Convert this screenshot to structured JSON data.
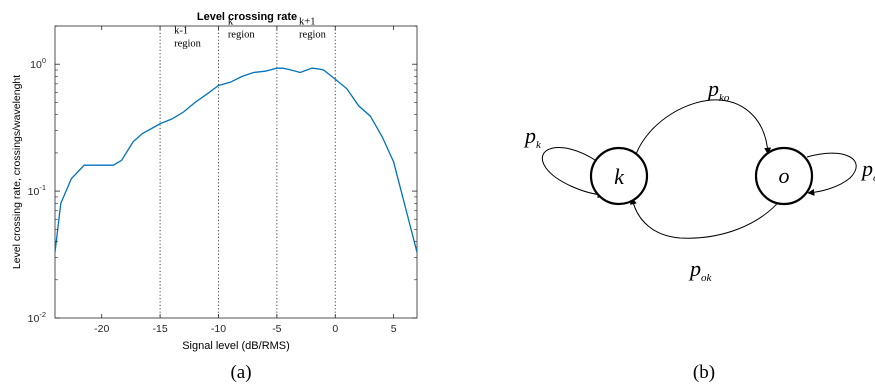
{
  "chart_data": {
    "type": "line",
    "title": "Level crossing rate",
    "xlabel": "Signal level (dB/RMS)",
    "ylabel": "Level crossing rate, crossings/wavelenght",
    "xlim": [
      -24,
      7
    ],
    "ylim": [
      0.01,
      2
    ],
    "yscale": "log",
    "grid": false,
    "x_ticks": [
      -20,
      -15,
      -10,
      -5,
      0,
      5
    ],
    "x_tick_labels": [
      "-20",
      "-15",
      "-10",
      "-5",
      "0",
      "5"
    ],
    "y_ticks": [
      0.01,
      0.1,
      1
    ],
    "y_tick_labels": [
      "10",
      "10",
      "10"
    ],
    "y_tick_exponents": [
      "-2",
      "-1",
      "0"
    ],
    "series": [
      {
        "color": "#0072BD",
        "x": [
          -24,
          -23.5,
          -22.6,
          -21.5,
          -20,
          -19,
          -18.3,
          -17.3,
          -16.5,
          -15.5,
          -15,
          -14,
          -13,
          -12,
          -11,
          -10,
          -9,
          -8,
          -7,
          -6,
          -5,
          -4.5,
          -4,
          -3,
          -2,
          -1.5,
          -1,
          0,
          1,
          2,
          3,
          4,
          5,
          6,
          7
        ],
        "y": [
          0.033,
          0.08,
          0.125,
          0.16,
          0.16,
          0.16,
          0.175,
          0.245,
          0.285,
          0.32,
          0.34,
          0.37,
          0.42,
          0.5,
          0.58,
          0.68,
          0.72,
          0.8,
          0.86,
          0.88,
          0.93,
          0.93,
          0.91,
          0.86,
          0.93,
          0.92,
          0.9,
          0.76,
          0.64,
          0.47,
          0.39,
          0.27,
          0.17,
          0.075,
          0.033
        ]
      }
    ],
    "reference_lines_x": [
      -15,
      -10,
      -5,
      0
    ],
    "annotations": [
      {
        "lines": [
          "k-1",
          "region"
        ],
        "x": -13.8,
        "y": 1.75
      },
      {
        "lines": [
          "k",
          "region"
        ],
        "x": -9.2,
        "y": 2.05
      },
      {
        "lines": [
          "k+1",
          "region"
        ],
        "x": -3.1,
        "y": 2.05
      }
    ]
  },
  "labels": {
    "panel_a": "(a)",
    "panel_b": "(b)"
  },
  "diagram": {
    "states": [
      {
        "id": "k",
        "label": "k"
      },
      {
        "id": "o",
        "label": "o"
      }
    ],
    "transitions": [
      {
        "from": "k",
        "to": "k",
        "label": "p",
        "subscript": "k"
      },
      {
        "from": "k",
        "to": "o",
        "label": "p",
        "subscript": "ko"
      },
      {
        "from": "o",
        "to": "k",
        "label": "p",
        "subscript": "ok"
      },
      {
        "from": "o",
        "to": "o",
        "label": "p",
        "subscript": "o"
      }
    ]
  }
}
